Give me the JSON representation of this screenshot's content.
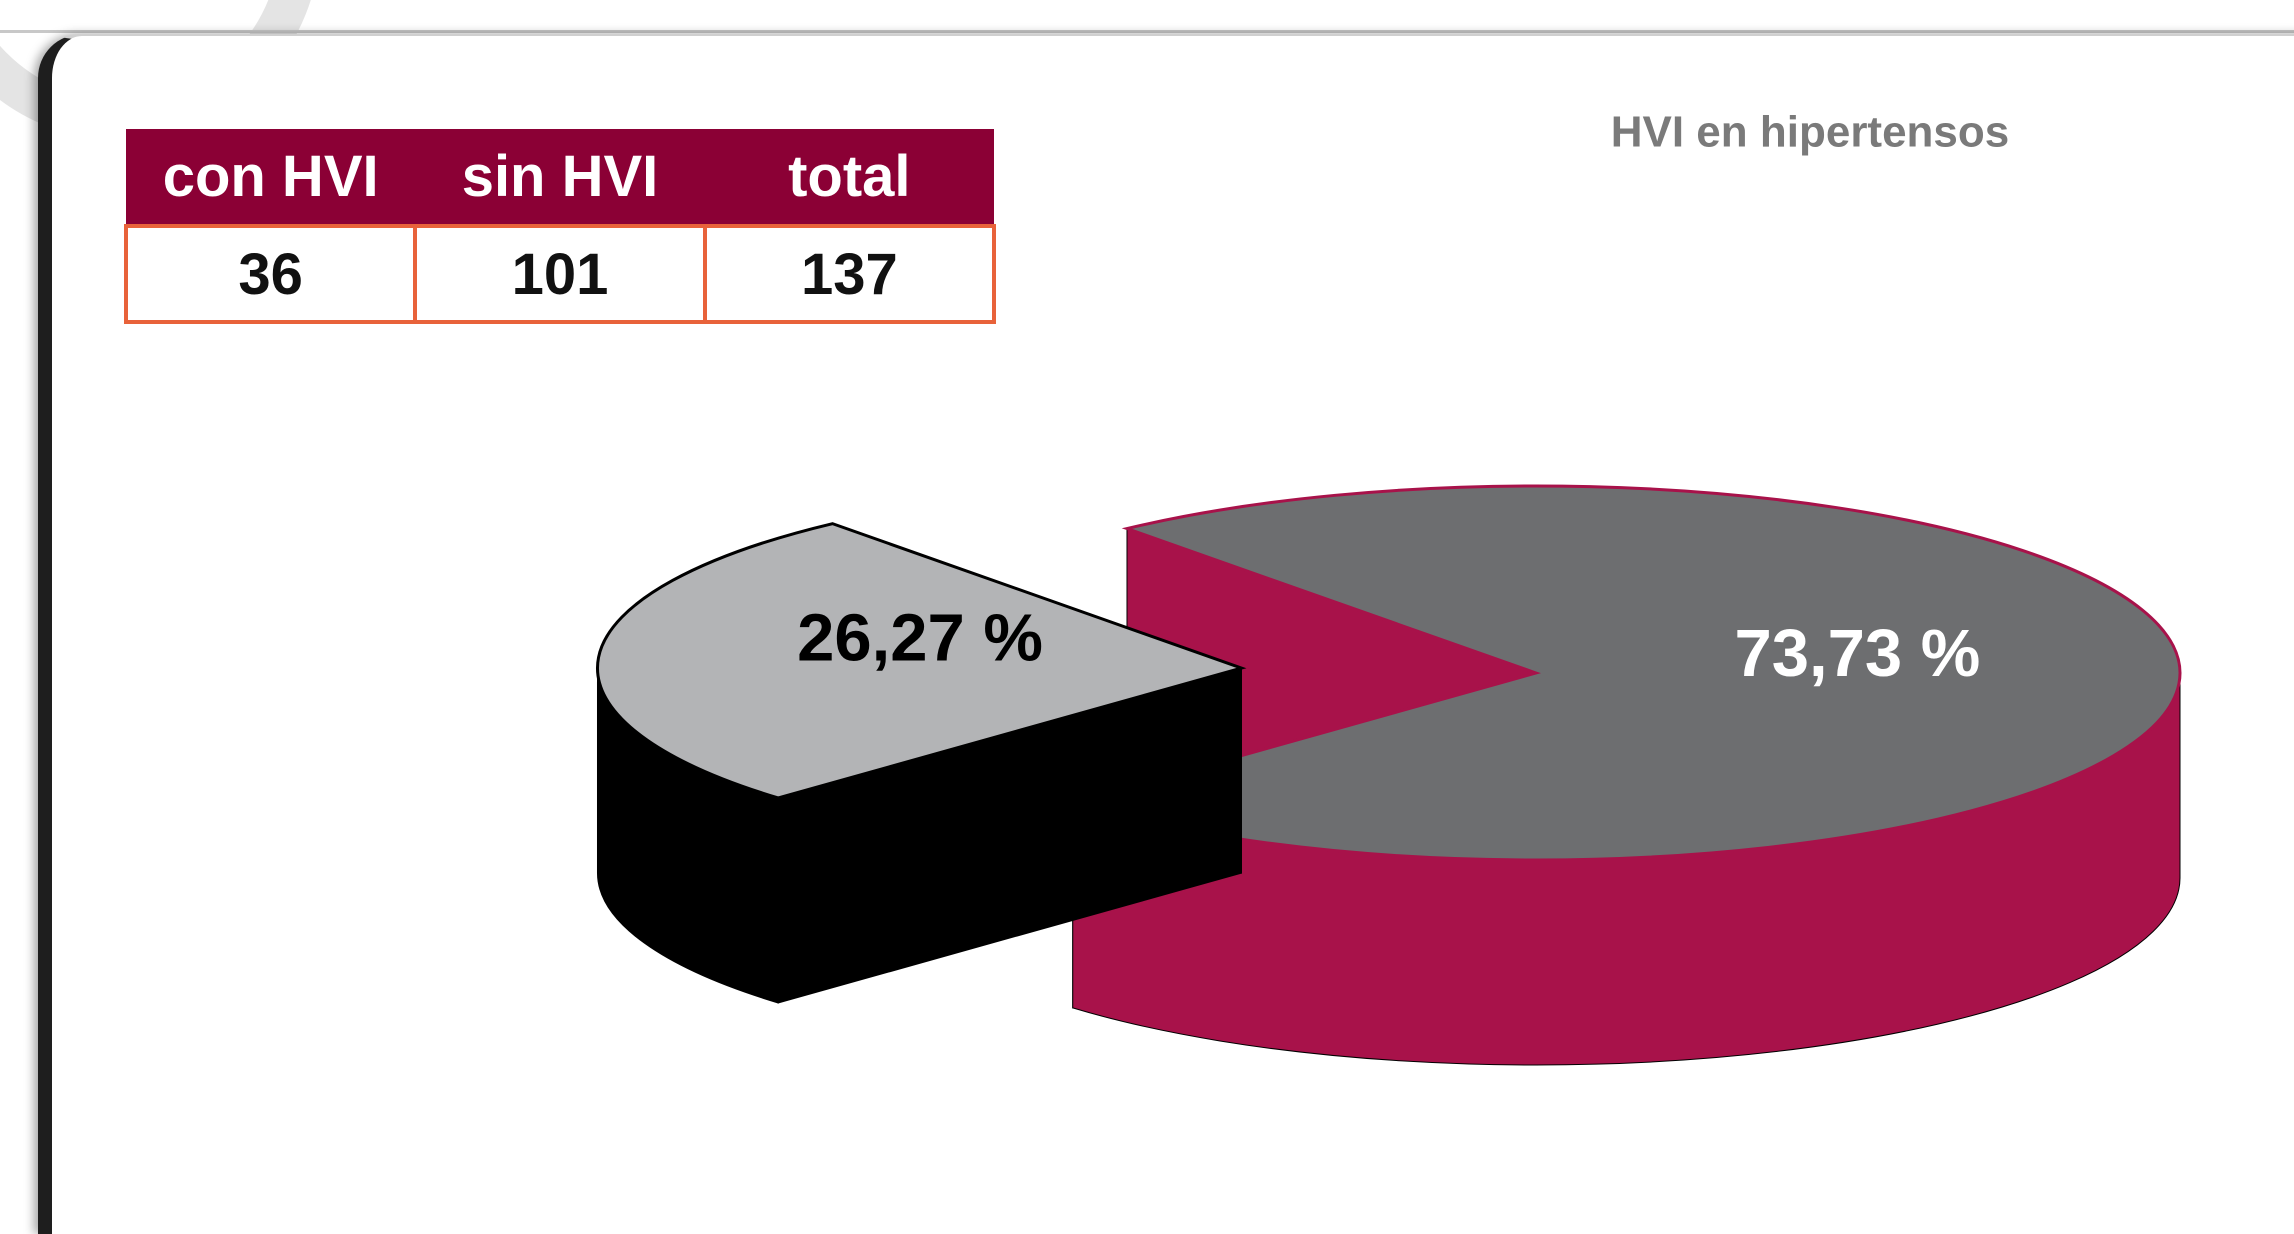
{
  "table": {
    "header": [
      "con HVI",
      "sin HVI",
      "total"
    ],
    "rows": [
      [
        36,
        101,
        137
      ]
    ]
  },
  "chart_data": {
    "type": "pie",
    "title": "HVI en hipertensos",
    "values": [
      26.27,
      73.73
    ],
    "value_labels": [
      "26,27 %",
      "73,73 %"
    ],
    "colors": [
      "#b3b4b6",
      "#6d6e70"
    ],
    "side_colors": [
      "#000000",
      "#a8124a"
    ],
    "label_colors": [
      "#000000",
      "#ffffff"
    ]
  }
}
